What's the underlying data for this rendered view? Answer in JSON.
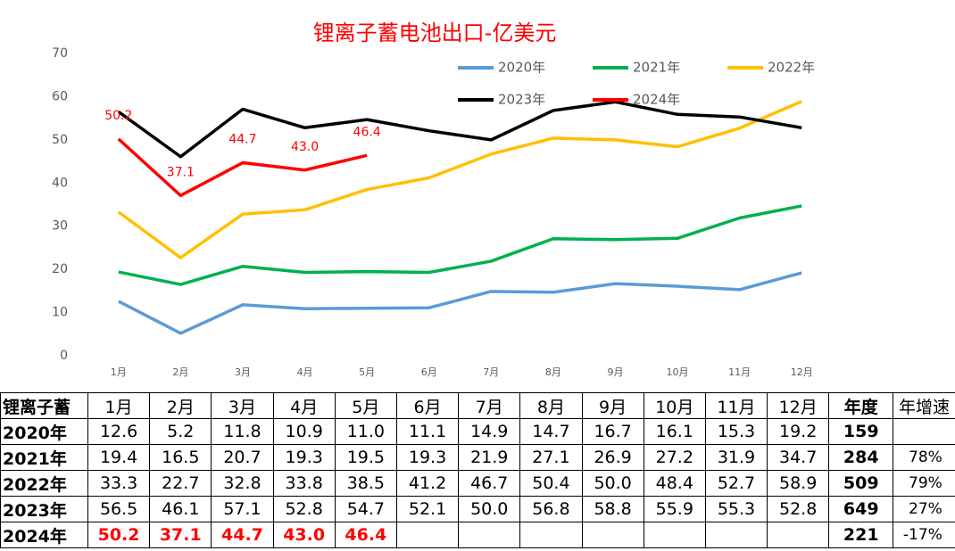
{
  "chart_data": {
    "type": "line",
    "title": "锂离子蓄电池出口-亿美元",
    "categories": [
      "1月",
      "2月",
      "3月",
      "4月",
      "5月",
      "6月",
      "7月",
      "8月",
      "9月",
      "10月",
      "11月",
      "12月"
    ],
    "series": [
      {
        "name": "2020年",
        "color": "#5b9bd5",
        "values": [
          12.6,
          5.2,
          11.8,
          10.9,
          11.0,
          11.1,
          14.9,
          14.7,
          16.7,
          16.1,
          15.3,
          19.2
        ]
      },
      {
        "name": "2021年",
        "color": "#00b050",
        "values": [
          19.4,
          16.5,
          20.7,
          19.3,
          19.5,
          19.3,
          21.9,
          27.1,
          26.9,
          27.2,
          31.9,
          34.7
        ]
      },
      {
        "name": "2022年",
        "color": "#ffc000",
        "values": [
          33.3,
          22.7,
          32.8,
          33.8,
          38.5,
          41.2,
          46.7,
          50.4,
          50.0,
          48.4,
          52.7,
          58.9
        ]
      },
      {
        "name": "2023年",
        "color": "#000000",
        "values": [
          56.5,
          46.1,
          57.1,
          52.8,
          54.7,
          52.1,
          50.0,
          56.8,
          58.8,
          55.9,
          55.3,
          52.8
        ]
      },
      {
        "name": "2024年",
        "color": "#ff0000",
        "values": [
          50.2,
          37.1,
          44.7,
          43.0,
          46.4,
          null,
          null,
          null,
          null,
          null,
          null,
          null
        ],
        "value_labels": [
          "50.2",
          "37.1",
          "44.7",
          "43.0",
          "46.4",
          null,
          null,
          null,
          null,
          null,
          null,
          null
        ]
      }
    ],
    "ylim": [
      0,
      70
    ],
    "yticks": [
      0,
      10,
      20,
      30,
      40,
      50,
      60,
      70
    ],
    "grid": false,
    "legend": "top"
  },
  "table": {
    "header": [
      "锂离子蓄",
      "1月",
      "2月",
      "3月",
      "4月",
      "5月",
      "6月",
      "7月",
      "8月",
      "9月",
      "10月",
      "11月",
      "12月",
      "年度",
      "年增速"
    ],
    "rows": [
      [
        "2020年",
        "12.6",
        "5.2",
        "11.8",
        "10.9",
        "11.0",
        "11.1",
        "14.9",
        "14.7",
        "16.7",
        "16.1",
        "15.3",
        "19.2",
        "159",
        null
      ],
      [
        "2021年",
        "19.4",
        "16.5",
        "20.7",
        "19.3",
        "19.5",
        "19.3",
        "21.9",
        "27.1",
        "26.9",
        "27.2",
        "31.9",
        "34.7",
        "284",
        "78%"
      ],
      [
        "2022年",
        "33.3",
        "22.7",
        "32.8",
        "33.8",
        "38.5",
        "41.2",
        "46.7",
        "50.4",
        "50.0",
        "48.4",
        "52.7",
        "58.9",
        "509",
        "79%"
      ],
      [
        "2023年",
        "56.5",
        "46.1",
        "57.1",
        "52.8",
        "54.7",
        "52.1",
        "50.0",
        "56.8",
        "58.8",
        "55.9",
        "55.3",
        "52.8",
        "649",
        "27%"
      ],
      [
        "2024年",
        "50.2",
        "37.1",
        "44.7",
        "43.0",
        "46.4",
        null,
        null,
        null,
        null,
        null,
        null,
        null,
        "221",
        "-17%"
      ]
    ]
  }
}
